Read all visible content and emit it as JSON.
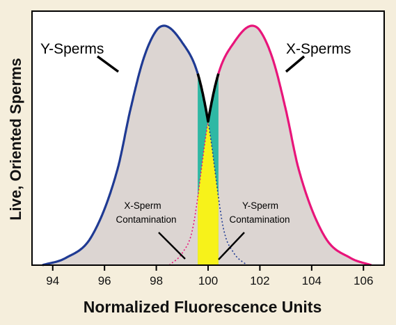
{
  "chart_data": {
    "type": "area",
    "xlabel": "Normalized Fluorescence Units",
    "ylabel": "Live, Oriented Sperms",
    "xlim": [
      93.2,
      106.8
    ],
    "ylim": [
      0,
      1
    ],
    "x_ticks": [
      94,
      96,
      98,
      100,
      102,
      104,
      106
    ],
    "series": [
      {
        "name": "Y-Sperms",
        "color": "#1f3a93",
        "peak_x": 98.3,
        "x": [
          93.6,
          94.5,
          95.5,
          96.5,
          97.0,
          97.5,
          98.0,
          98.3,
          99.0,
          99.6,
          100.0,
          100.6,
          101.0,
          101.5
        ],
        "y": [
          0.0,
          0.03,
          0.12,
          0.4,
          0.65,
          0.86,
          0.98,
          1.0,
          0.93,
          0.8,
          0.6,
          0.15,
          0.05,
          0.0
        ]
      },
      {
        "name": "X-Sperms",
        "color": "#e8157a",
        "peak_x": 101.7,
        "x": [
          98.5,
          99.0,
          99.4,
          100.0,
          100.4,
          101.0,
          101.7,
          102.0,
          102.5,
          103.0,
          103.5,
          104.5,
          105.5,
          106.3
        ],
        "y": [
          0.0,
          0.05,
          0.15,
          0.6,
          0.8,
          0.93,
          1.0,
          0.98,
          0.86,
          0.65,
          0.4,
          0.12,
          0.03,
          0.0
        ]
      }
    ],
    "sorted_region": {
      "x": [
        99.6,
        100.4
      ],
      "color": "#2fb8a4"
    },
    "contamination": [
      {
        "label": "X-Sperm Contamination",
        "x": [
          99.6,
          100.0
        ],
        "color": "#f7f21a"
      },
      {
        "label": "Y-Sperm Contamination",
        "x": [
          100.0,
          100.4
        ],
        "color": "#f7f21a"
      }
    ],
    "annotations": [
      {
        "text": "Y-Sperms",
        "target": "Y-Sperms curve"
      },
      {
        "text": "X-Sperms",
        "target": "X-Sperms curve"
      },
      {
        "line1": "X-Sperm",
        "line2": "Contamination"
      },
      {
        "line1": "Y-Sperm",
        "line2": "Contamination"
      }
    ]
  }
}
